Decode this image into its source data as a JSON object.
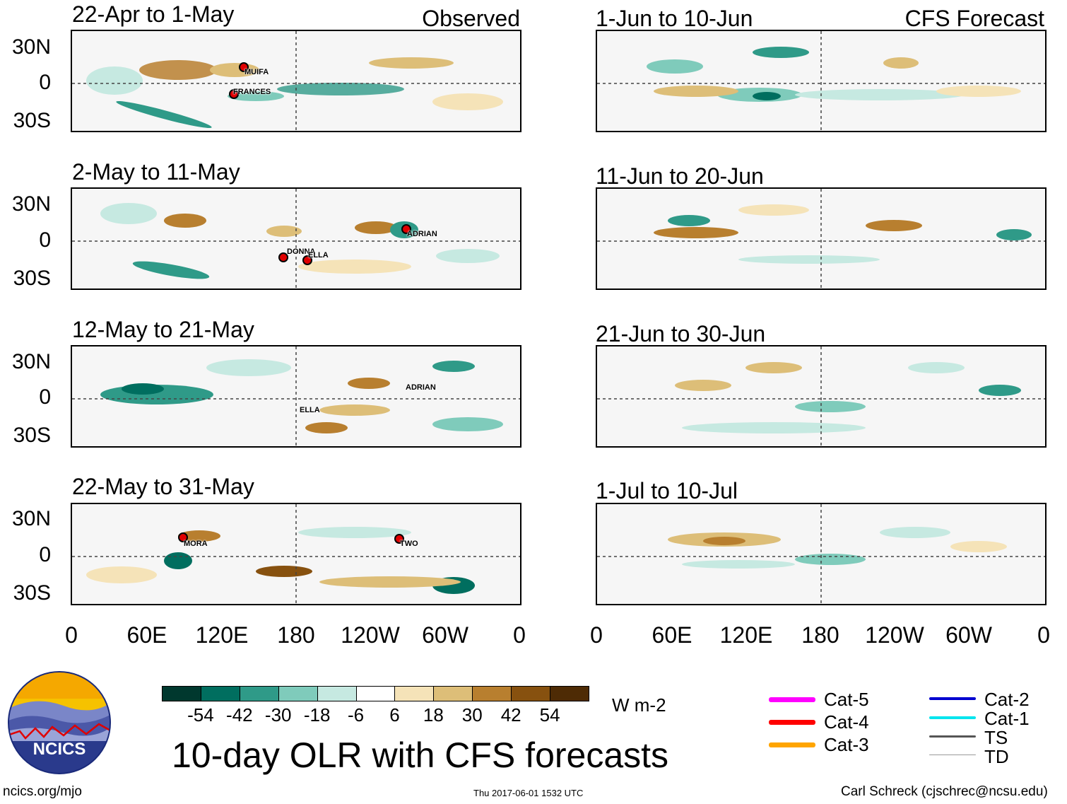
{
  "observed": {
    "tag": "Observed",
    "panels": [
      {
        "title": "22-Apr to 1-May",
        "storms": [
          "MUIFA",
          "FRANCES"
        ]
      },
      {
        "title": "2-May to 11-May",
        "storms": [
          "ADRIAN",
          "DONNA",
          "ELLA"
        ]
      },
      {
        "title": "12-May to 21-May",
        "storms": [
          "ADRIAN",
          "ELLA"
        ]
      },
      {
        "title": "22-May to 31-May",
        "storms": [
          "MORA",
          "TWO"
        ]
      }
    ]
  },
  "forecast": {
    "tag": "CFS Forecast",
    "panels": [
      {
        "title": "1-Jun to 10-Jun"
      },
      {
        "title": "11-Jun to 20-Jun"
      },
      {
        "title": "21-Jun to 30-Jun"
      },
      {
        "title": "1-Jul to 10-Jul"
      }
    ]
  },
  "lat_labels": [
    "30N",
    "0",
    "30S"
  ],
  "lon_labels": [
    "0",
    "60E",
    "120E",
    "180",
    "120W",
    "60W",
    "0"
  ],
  "colorbar": {
    "ticks": [
      "-54",
      "-42",
      "-30",
      "-18",
      "-6",
      "6",
      "18",
      "30",
      "42",
      "54"
    ],
    "units": "W m-2",
    "colors": [
      "#00382e",
      "#006e5f",
      "#2f9a88",
      "#7fcbbb",
      "#c6e9e1",
      "#ffffff",
      "#f5e3b8",
      "#ddbe78",
      "#b87f2f",
      "#87510f",
      "#4e2b05"
    ]
  },
  "legend": [
    {
      "label": "Cat-5",
      "color": "#ff00ff"
    },
    {
      "label": "Cat-4",
      "color": "#ff0000"
    },
    {
      "label": "Cat-3",
      "color": "#ffa500"
    },
    {
      "label": "Cat-2",
      "color": "#0000d0"
    },
    {
      "label": "Cat-1",
      "color": "#00e5ee"
    },
    {
      "label": "TS",
      "color": "#555555"
    },
    {
      "label": "TD",
      "color": "#999999"
    }
  ],
  "logo_text": "NCICS",
  "main_title": "10-day OLR with CFS forecasts",
  "footer": {
    "url": "ncics.org/mjo",
    "timestamp": "Thu 2017-06-01 1532 UTC",
    "credit": "Carl Schreck (cjschrec@ncsu.edu)"
  }
}
